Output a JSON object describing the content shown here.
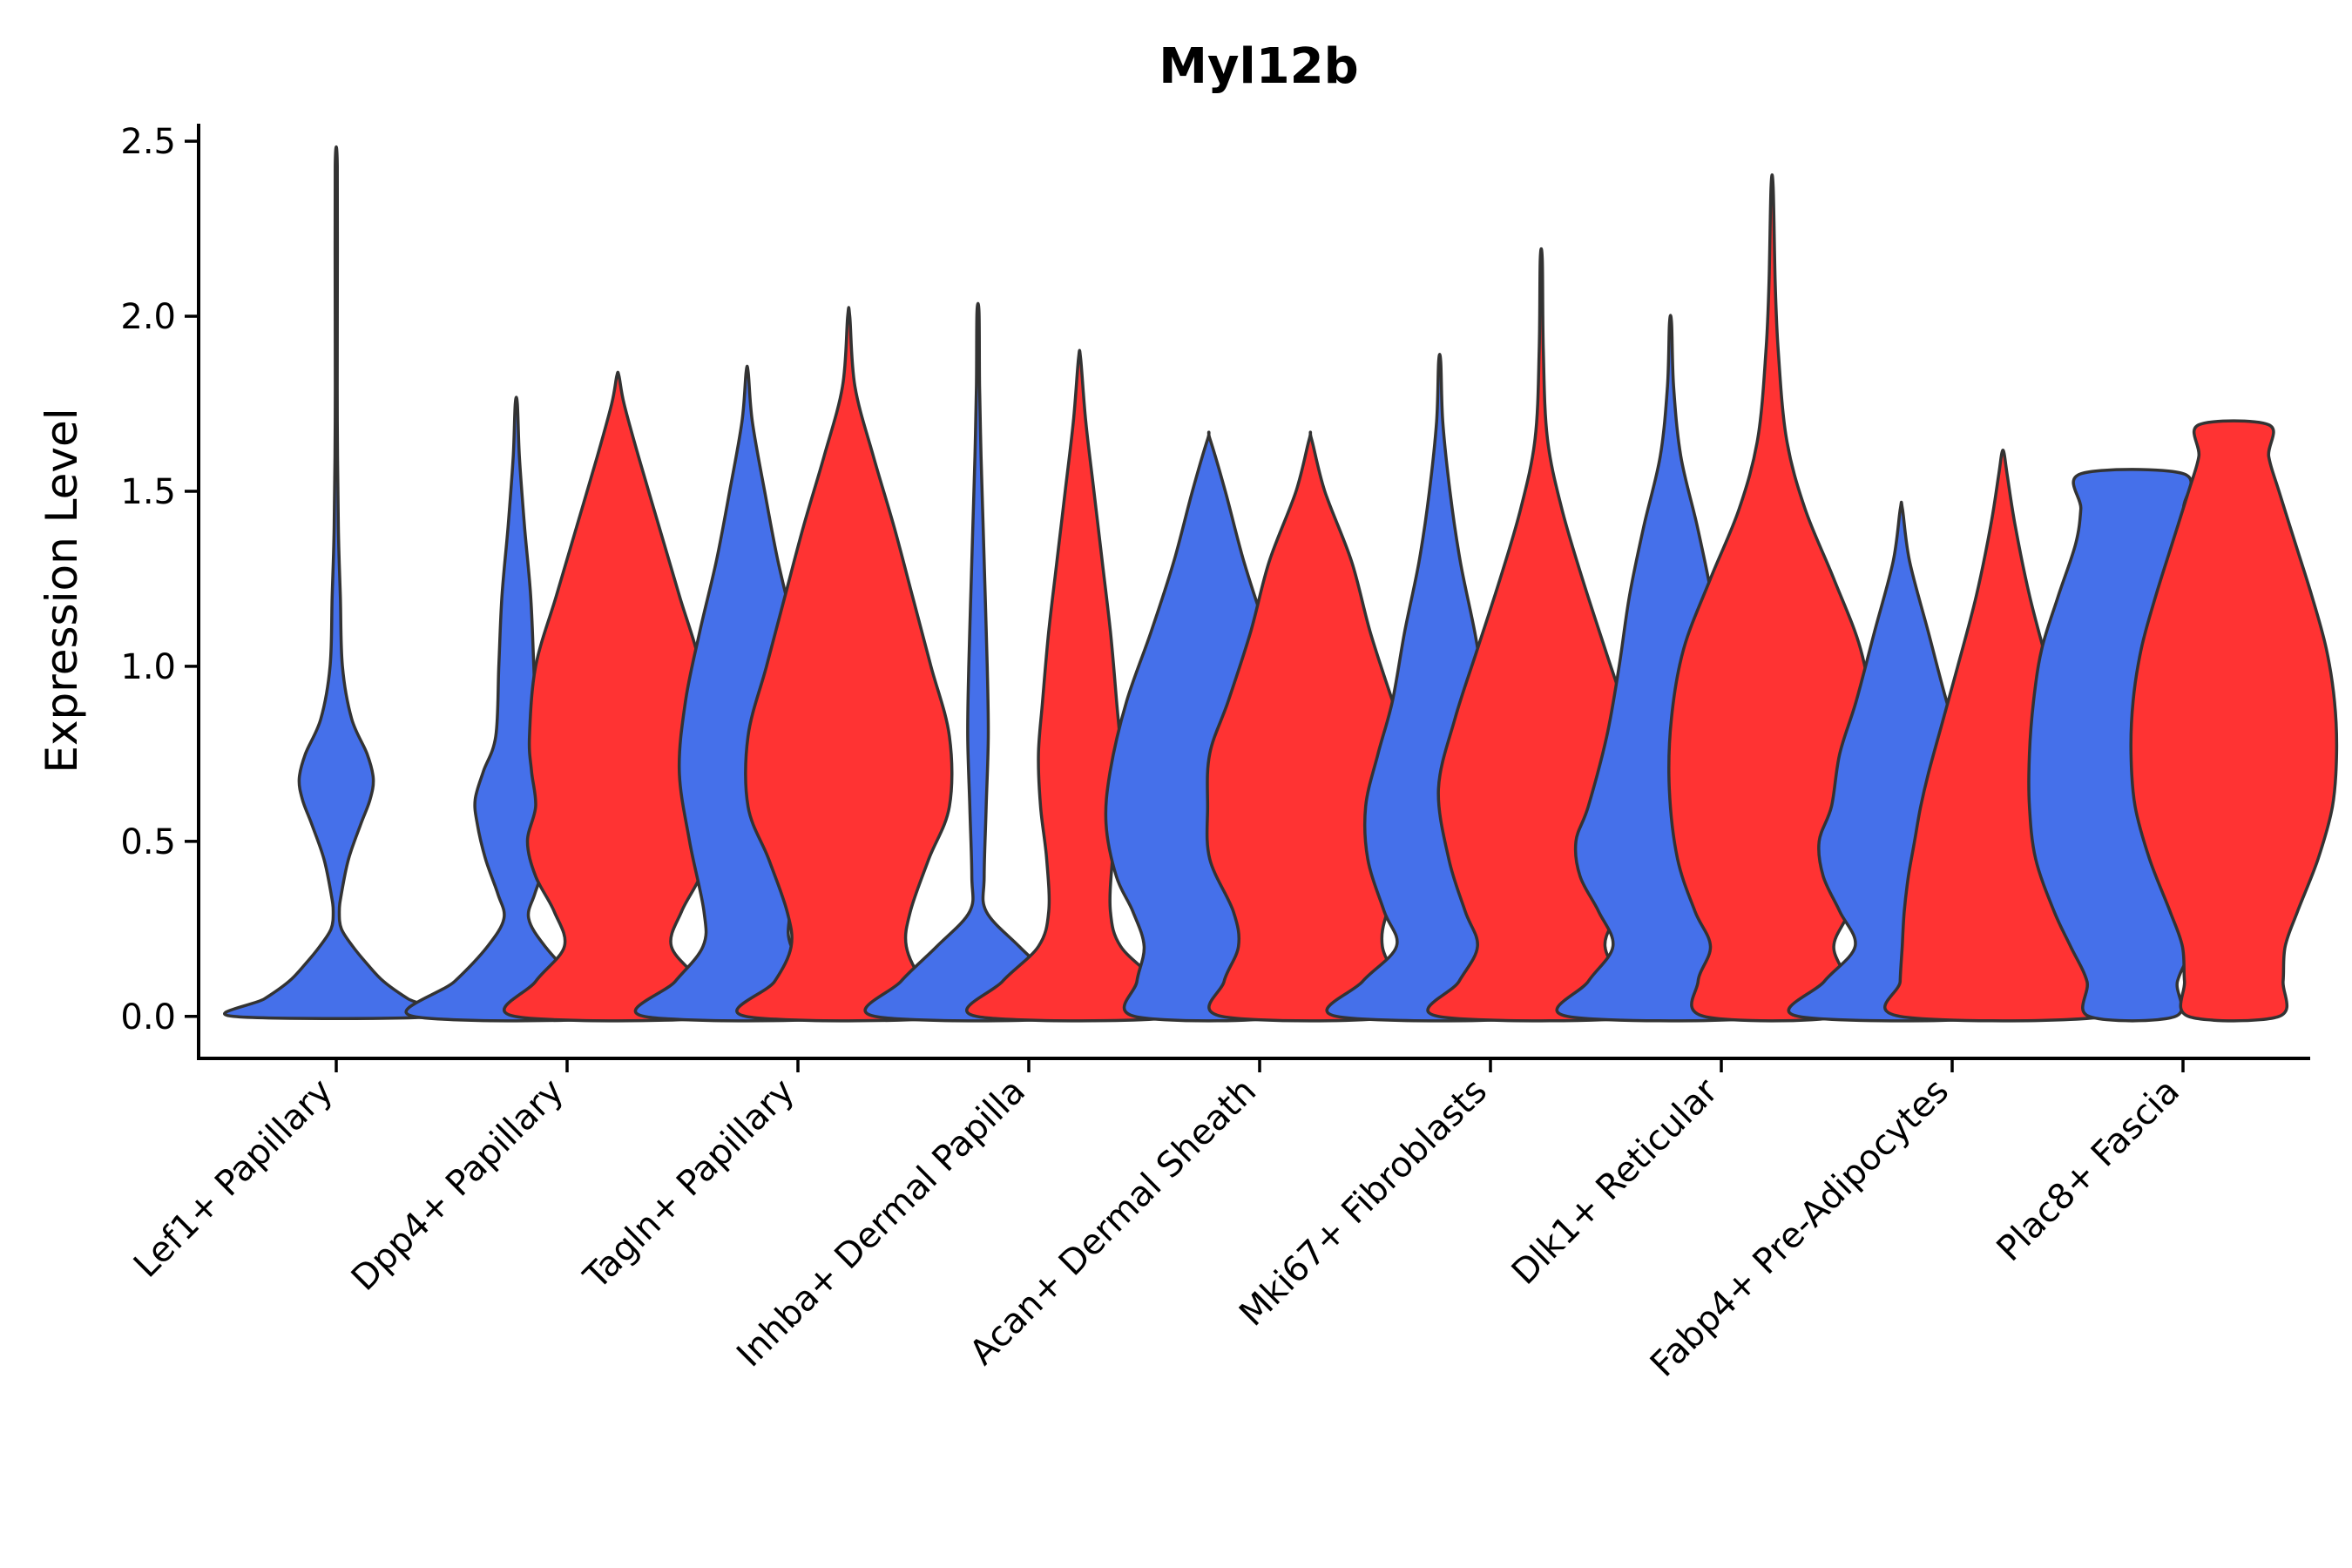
{
  "chart_data": {
    "type": "violin",
    "title": "Myl12b",
    "xlabel": "",
    "ylabel": "Expression Level",
    "ylim": [
      -0.12,
      2.55
    ],
    "yticks": [
      0.0,
      0.5,
      1.0,
      1.5,
      2.0,
      2.5
    ],
    "ytick_labels": [
      "0.0",
      "0.5",
      "1.0",
      "1.5",
      "2.0",
      "2.5"
    ],
    "categories": [
      "Lef1+ Papillary",
      "Dpp4+ Papillary",
      "Tagln+ Papillary",
      "Inhba+ Dermal Papilla",
      "Acan+ Dermal Sheath",
      "Mki67+ Fibroblasts",
      "Dlk1+ Reticular",
      "Fabp4+ Pre-Adipocytes",
      "Plac8+ Fascia"
    ],
    "series_colors": [
      "#4570ea",
      "#ff3333"
    ],
    "violins": [
      {
        "category": "Lef1+ Papillary",
        "group": 0,
        "color": "#4570ea",
        "offset": 0.0,
        "max": 2.43,
        "profile": [
          [
            0.0,
            1.0
          ],
          [
            0.05,
            0.7
          ],
          [
            0.1,
            0.46
          ],
          [
            0.15,
            0.3
          ],
          [
            0.2,
            0.16
          ],
          [
            0.25,
            0.05
          ],
          [
            0.3,
            0.03
          ],
          [
            0.35,
            0.05
          ],
          [
            0.45,
            0.12
          ],
          [
            0.55,
            0.24
          ],
          [
            0.62,
            0.33
          ],
          [
            0.68,
            0.36
          ],
          [
            0.75,
            0.3
          ],
          [
            0.85,
            0.15
          ],
          [
            1.0,
            0.06
          ],
          [
            1.2,
            0.04
          ],
          [
            1.4,
            0.02
          ],
          [
            1.7,
            0.008
          ],
          [
            2.0,
            0.006
          ],
          [
            2.43,
            0.0
          ]
        ]
      },
      {
        "category": "Dpp4+ Papillary",
        "group": 0,
        "color": "#4570ea",
        "offset": -0.22,
        "max": 1.75,
        "profile": [
          [
            0.0,
            1.0
          ],
          [
            0.1,
            0.6
          ],
          [
            0.2,
            0.28
          ],
          [
            0.28,
            0.12
          ],
          [
            0.35,
            0.18
          ],
          [
            0.45,
            0.3
          ],
          [
            0.55,
            0.38
          ],
          [
            0.62,
            0.4
          ],
          [
            0.7,
            0.32
          ],
          [
            0.8,
            0.2
          ],
          [
            1.0,
            0.17
          ],
          [
            1.2,
            0.14
          ],
          [
            1.4,
            0.08
          ],
          [
            1.6,
            0.03
          ],
          [
            1.75,
            0.0
          ]
        ]
      },
      {
        "category": "Dpp4+ Papillary",
        "group": 1,
        "color": "#ff3333",
        "offset": 0.22,
        "max": 1.83,
        "profile": [
          [
            0.0,
            1.0
          ],
          [
            0.1,
            0.8
          ],
          [
            0.2,
            0.52
          ],
          [
            0.3,
            0.62
          ],
          [
            0.4,
            0.8
          ],
          [
            0.5,
            0.88
          ],
          [
            0.6,
            0.8
          ],
          [
            0.7,
            0.84
          ],
          [
            0.8,
            0.86
          ],
          [
            1.0,
            0.8
          ],
          [
            1.2,
            0.6
          ],
          [
            1.4,
            0.4
          ],
          [
            1.6,
            0.2
          ],
          [
            1.75,
            0.06
          ],
          [
            1.83,
            0.0
          ]
        ]
      },
      {
        "category": "Tagln+ Papillary",
        "group": 0,
        "color": "#4570ea",
        "offset": -0.22,
        "max": 1.84,
        "profile": [
          [
            0.0,
            1.0
          ],
          [
            0.1,
            0.7
          ],
          [
            0.2,
            0.43
          ],
          [
            0.3,
            0.42
          ],
          [
            0.5,
            0.56
          ],
          [
            0.7,
            0.66
          ],
          [
            0.9,
            0.6
          ],
          [
            1.1,
            0.46
          ],
          [
            1.3,
            0.3
          ],
          [
            1.5,
            0.17
          ],
          [
            1.7,
            0.05
          ],
          [
            1.84,
            0.0
          ]
        ]
      },
      {
        "category": "Tagln+ Papillary",
        "group": 1,
        "color": "#ff3333",
        "offset": 0.22,
        "max": 2.0,
        "profile": [
          [
            0.0,
            1.0
          ],
          [
            0.1,
            0.72
          ],
          [
            0.2,
            0.56
          ],
          [
            0.3,
            0.6
          ],
          [
            0.45,
            0.78
          ],
          [
            0.6,
            0.98
          ],
          [
            0.8,
            0.98
          ],
          [
            1.0,
            0.8
          ],
          [
            1.2,
            0.62
          ],
          [
            1.4,
            0.44
          ],
          [
            1.6,
            0.24
          ],
          [
            1.8,
            0.06
          ],
          [
            2.0,
            0.0
          ]
        ]
      },
      {
        "category": "Inhba+ Dermal Papilla",
        "group": 0,
        "color": "#4570ea",
        "offset": -0.22,
        "max": 2.01,
        "profile": [
          [
            0.0,
            1.0
          ],
          [
            0.1,
            0.75
          ],
          [
            0.2,
            0.4
          ],
          [
            0.3,
            0.08
          ],
          [
            0.4,
            0.06
          ],
          [
            0.6,
            0.08
          ],
          [
            0.8,
            0.1
          ],
          [
            1.0,
            0.09
          ],
          [
            1.2,
            0.07
          ],
          [
            1.4,
            0.05
          ],
          [
            1.6,
            0.03
          ],
          [
            1.8,
            0.015
          ],
          [
            2.01,
            0.0
          ]
        ]
      },
      {
        "category": "Inhba+ Dermal Papilla",
        "group": 1,
        "color": "#ff3333",
        "offset": 0.22,
        "max": 1.88,
        "profile": [
          [
            0.0,
            1.0
          ],
          [
            0.1,
            0.75
          ],
          [
            0.2,
            0.4
          ],
          [
            0.3,
            0.3
          ],
          [
            0.45,
            0.32
          ],
          [
            0.6,
            0.38
          ],
          [
            0.75,
            0.4
          ],
          [
            0.9,
            0.36
          ],
          [
            1.1,
            0.3
          ],
          [
            1.3,
            0.22
          ],
          [
            1.5,
            0.14
          ],
          [
            1.7,
            0.06
          ],
          [
            1.88,
            0.0
          ]
        ]
      },
      {
        "category": "Acan+ Dermal Sheath",
        "group": 0,
        "color": "#4570ea",
        "offset": -0.22,
        "max": 1.65,
        "profile": [
          [
            0.0,
            0.72
          ],
          [
            0.1,
            0.7
          ],
          [
            0.2,
            0.63
          ],
          [
            0.3,
            0.74
          ],
          [
            0.4,
            0.9
          ],
          [
            0.55,
            1.0
          ],
          [
            0.7,
            0.96
          ],
          [
            0.9,
            0.8
          ],
          [
            1.1,
            0.56
          ],
          [
            1.3,
            0.34
          ],
          [
            1.5,
            0.16
          ],
          [
            1.65,
            0.0
          ]
        ]
      },
      {
        "category": "Acan+ Dermal Sheath",
        "group": 1,
        "color": "#ff3333",
        "offset": 0.22,
        "max": 1.65,
        "profile": [
          [
            0.0,
            0.86
          ],
          [
            0.1,
            0.84
          ],
          [
            0.2,
            0.7
          ],
          [
            0.3,
            0.75
          ],
          [
            0.45,
            0.98
          ],
          [
            0.6,
            1.0
          ],
          [
            0.75,
            0.98
          ],
          [
            0.9,
            0.8
          ],
          [
            1.1,
            0.58
          ],
          [
            1.3,
            0.4
          ],
          [
            1.5,
            0.14
          ],
          [
            1.65,
            0.0
          ]
        ]
      },
      {
        "category": "Mki67+ Fibroblasts",
        "group": 0,
        "color": "#4570ea",
        "offset": -0.22,
        "max": 1.87,
        "profile": [
          [
            0.0,
            1.0
          ],
          [
            0.1,
            0.75
          ],
          [
            0.2,
            0.42
          ],
          [
            0.3,
            0.54
          ],
          [
            0.45,
            0.7
          ],
          [
            0.6,
            0.72
          ],
          [
            0.75,
            0.6
          ],
          [
            0.9,
            0.46
          ],
          [
            1.1,
            0.34
          ],
          [
            1.3,
            0.2
          ],
          [
            1.5,
            0.1
          ],
          [
            1.7,
            0.03
          ],
          [
            1.87,
            0.0
          ]
        ]
      },
      {
        "category": "Mki67+ Fibroblasts",
        "group": 1,
        "color": "#ff3333",
        "offset": 0.22,
        "max": 2.16,
        "profile": [
          [
            0.0,
            1.0
          ],
          [
            0.1,
            0.8
          ],
          [
            0.2,
            0.62
          ],
          [
            0.3,
            0.74
          ],
          [
            0.45,
            0.9
          ],
          [
            0.65,
            1.0
          ],
          [
            0.85,
            0.84
          ],
          [
            1.05,
            0.62
          ],
          [
            1.25,
            0.4
          ],
          [
            1.45,
            0.2
          ],
          [
            1.65,
            0.06
          ],
          [
            1.9,
            0.02
          ],
          [
            2.16,
            0.0
          ]
        ]
      },
      {
        "category": "Dlk1+ Reticular",
        "group": 0,
        "color": "#4570ea",
        "offset": -0.22,
        "max": 1.98,
        "profile": [
          [
            0.0,
            1.0
          ],
          [
            0.1,
            0.8
          ],
          [
            0.2,
            0.56
          ],
          [
            0.3,
            0.7
          ],
          [
            0.4,
            0.88
          ],
          [
            0.5,
            0.92
          ],
          [
            0.6,
            0.8
          ],
          [
            0.8,
            0.62
          ],
          [
            1.0,
            0.5
          ],
          [
            1.2,
            0.4
          ],
          [
            1.4,
            0.26
          ],
          [
            1.6,
            0.1
          ],
          [
            1.8,
            0.03
          ],
          [
            1.98,
            0.0
          ]
        ]
      },
      {
        "category": "Dlk1+ Reticular",
        "group": 1,
        "color": "#ff3333",
        "offset": 0.22,
        "max": 2.37,
        "profile": [
          [
            0.0,
            0.66
          ],
          [
            0.1,
            0.72
          ],
          [
            0.2,
            0.6
          ],
          [
            0.3,
            0.75
          ],
          [
            0.45,
            0.92
          ],
          [
            0.65,
            1.0
          ],
          [
            0.85,
            0.98
          ],
          [
            1.05,
            0.86
          ],
          [
            1.25,
            0.6
          ],
          [
            1.45,
            0.32
          ],
          [
            1.65,
            0.14
          ],
          [
            1.9,
            0.06
          ],
          [
            2.1,
            0.03
          ],
          [
            2.37,
            0.0
          ]
        ]
      },
      {
        "category": "Fabp4+ Pre-Adipocytes",
        "group": 0,
        "color": "#4570ea",
        "offset": -0.22,
        "max": 1.45,
        "profile": [
          [
            0.0,
            1.0
          ],
          [
            0.1,
            0.75
          ],
          [
            0.2,
            0.45
          ],
          [
            0.3,
            0.6
          ],
          [
            0.4,
            0.76
          ],
          [
            0.5,
            0.8
          ],
          [
            0.6,
            0.68
          ],
          [
            0.75,
            0.6
          ],
          [
            0.9,
            0.44
          ],
          [
            1.1,
            0.26
          ],
          [
            1.3,
            0.08
          ],
          [
            1.45,
            0.0
          ]
        ]
      },
      {
        "category": "Fabp4+ Pre-Adipocytes",
        "group": 1,
        "color": "#ff3333",
        "offset": 0.22,
        "max": 1.61,
        "profile": [
          [
            0.0,
            1.0
          ],
          [
            0.1,
            1.0
          ],
          [
            0.2,
            0.98
          ],
          [
            0.3,
            0.96
          ],
          [
            0.4,
            0.92
          ],
          [
            0.5,
            0.86
          ],
          [
            0.6,
            0.8
          ],
          [
            0.7,
            0.72
          ],
          [
            0.85,
            0.58
          ],
          [
            1.0,
            0.44
          ],
          [
            1.2,
            0.26
          ],
          [
            1.4,
            0.12
          ],
          [
            1.55,
            0.04
          ],
          [
            1.61,
            0.0
          ]
        ]
      },
      {
        "category": "Plac8+ Fascia",
        "group": 0,
        "color": "#4570ea",
        "offset": -0.22,
        "max": 1.55,
        "profile": [
          [
            0.0,
            0.42
          ],
          [
            0.1,
            0.44
          ],
          [
            0.2,
            0.6
          ],
          [
            0.3,
            0.76
          ],
          [
            0.45,
            0.94
          ],
          [
            0.6,
            1.0
          ],
          [
            0.75,
            1.0
          ],
          [
            0.9,
            0.96
          ],
          [
            1.05,
            0.88
          ],
          [
            1.2,
            0.72
          ],
          [
            1.35,
            0.55
          ],
          [
            1.45,
            0.5
          ],
          [
            1.55,
            0.5
          ]
        ]
      },
      {
        "category": "Plac8+ Fascia",
        "group": 1,
        "color": "#ff3333",
        "offset": 0.22,
        "max": 1.69,
        "profile": [
          [
            0.0,
            0.44
          ],
          [
            0.1,
            0.48
          ],
          [
            0.2,
            0.5
          ],
          [
            0.3,
            0.62
          ],
          [
            0.45,
            0.82
          ],
          [
            0.6,
            0.96
          ],
          [
            0.75,
            1.0
          ],
          [
            0.9,
            0.98
          ],
          [
            1.05,
            0.9
          ],
          [
            1.2,
            0.76
          ],
          [
            1.35,
            0.6
          ],
          [
            1.5,
            0.44
          ],
          [
            1.6,
            0.34
          ],
          [
            1.69,
            0.34
          ]
        ]
      }
    ]
  }
}
